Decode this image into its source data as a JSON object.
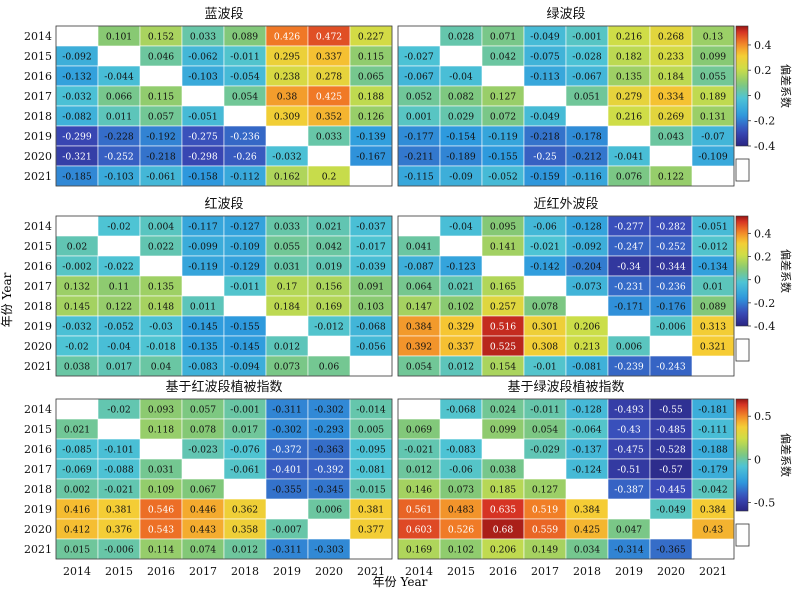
{
  "years": [
    "2014",
    "2015",
    "2016",
    "2017",
    "2018",
    "2019",
    "2020",
    "2021"
  ],
  "axis_label": "年份 Year",
  "colorbar_label": "偏差系数",
  "chart_data": [
    {
      "type": "heatmap",
      "title": "蓝波段",
      "rows": [
        "2014",
        "2015",
        "2016",
        "2017",
        "2018",
        "2019",
        "2020",
        "2021"
      ],
      "cols": [
        "2014",
        "2015",
        "2016",
        "2017",
        "2018",
        "2019",
        "2020",
        "2021"
      ],
      "values": [
        [
          null,
          0.101,
          0.152,
          0.033,
          0.089,
          0.426,
          0.472,
          0.227
        ],
        [
          -0.092,
          null,
          0.046,
          -0.062,
          -0.011,
          0.295,
          0.337,
          0.115
        ],
        [
          -0.132,
          -0.044,
          null,
          -0.103,
          -0.054,
          0.238,
          0.278,
          0.065
        ],
        [
          -0.032,
          0.066,
          0.115,
          null,
          0.054,
          0.38,
          0.425,
          0.188
        ],
        [
          -0.082,
          0.011,
          0.057,
          -0.051,
          null,
          0.309,
          0.352,
          0.126
        ],
        [
          -0.299,
          -0.228,
          -0.192,
          -0.275,
          -0.236,
          null,
          0.033,
          -0.139
        ],
        [
          -0.321,
          -0.252,
          -0.218,
          -0.298,
          -0.26,
          -0.032,
          null,
          -0.167
        ],
        [
          -0.185,
          -0.103,
          -0.061,
          -0.158,
          -0.112,
          0.162,
          0.2,
          null
        ]
      ]
    },
    {
      "type": "heatmap",
      "title": "绿波段",
      "rows": [
        "2014",
        "2015",
        "2016",
        "2017",
        "2018",
        "2019",
        "2020",
        "2021"
      ],
      "cols": [
        "2014",
        "2015",
        "2016",
        "2017",
        "2018",
        "2019",
        "2020",
        "2021"
      ],
      "values": [
        [
          null,
          0.028,
          0.071,
          -0.049,
          -0.001,
          0.216,
          0.268,
          0.13
        ],
        [
          -0.027,
          null,
          0.042,
          -0.075,
          -0.028,
          0.182,
          0.233,
          0.099
        ],
        [
          -0.067,
          -0.04,
          null,
          -0.113,
          -0.067,
          0.135,
          0.184,
          0.055
        ],
        [
          0.052,
          0.082,
          0.127,
          null,
          0.051,
          0.279,
          0.334,
          0.189
        ],
        [
          0.001,
          0.029,
          0.072,
          -0.049,
          null,
          0.216,
          0.269,
          0.131
        ],
        [
          -0.177,
          -0.154,
          -0.119,
          -0.218,
          -0.178,
          null,
          0.043,
          -0.07
        ],
        [
          -0.211,
          -0.189,
          -0.155,
          -0.25,
          -0.212,
          -0.041,
          null,
          -0.109
        ],
        [
          -0.115,
          -0.09,
          -0.052,
          -0.159,
          -0.116,
          0.076,
          0.122,
          null
        ]
      ],
      "colorbar": {
        "ticks": [
          0.4,
          0.2,
          0,
          -0.2,
          -0.4
        ],
        "range": [
          -0.4,
          0.55
        ]
      }
    },
    {
      "type": "heatmap",
      "title": "红波段",
      "rows": [
        "2014",
        "2015",
        "2016",
        "2017",
        "2018",
        "2019",
        "2020",
        "2021"
      ],
      "cols": [
        "2014",
        "2015",
        "2016",
        "2017",
        "2018",
        "2019",
        "2020",
        "2021"
      ],
      "values": [
        [
          null,
          -0.02,
          0.004,
          -0.117,
          -0.127,
          0.033,
          0.021,
          -0.037
        ],
        [
          0.02,
          null,
          0.022,
          -0.099,
          -0.109,
          0.055,
          0.042,
          -0.017
        ],
        [
          -0.002,
          -0.022,
          null,
          -0.119,
          -0.129,
          0.031,
          0.019,
          -0.039
        ],
        [
          0.132,
          0.11,
          0.135,
          null,
          -0.011,
          0.17,
          0.156,
          0.091
        ],
        [
          0.145,
          0.122,
          0.148,
          0.011,
          null,
          0.184,
          0.169,
          0.103
        ],
        [
          -0.032,
          -0.052,
          -0.03,
          -0.145,
          -0.155,
          null,
          -0.012,
          -0.068
        ],
        [
          -0.02,
          -0.04,
          -0.018,
          -0.135,
          -0.145,
          0.012,
          null,
          -0.056
        ],
        [
          0.038,
          0.017,
          0.04,
          -0.083,
          -0.094,
          0.073,
          0.06,
          null
        ]
      ]
    },
    {
      "type": "heatmap",
      "title": "近红外波段",
      "rows": [
        "2014",
        "2015",
        "2016",
        "2017",
        "2018",
        "2019",
        "2020",
        "2021"
      ],
      "cols": [
        "2014",
        "2015",
        "2016",
        "2017",
        "2018",
        "2019",
        "2020",
        "2021"
      ],
      "values": [
        [
          null,
          -0.04,
          0.095,
          -0.06,
          -0.128,
          -0.277,
          -0.282,
          -0.051
        ],
        [
          0.041,
          null,
          0.141,
          -0.021,
          -0.092,
          -0.247,
          -0.252,
          -0.012
        ],
        [
          -0.087,
          -0.123,
          null,
          -0.142,
          -0.204,
          -0.34,
          -0.344,
          -0.134
        ],
        [
          0.064,
          0.021,
          0.165,
          null,
          -0.073,
          -0.231,
          -0.236,
          0.01
        ],
        [
          0.147,
          0.102,
          0.257,
          0.078,
          null,
          -0.171,
          -0.176,
          0.089
        ],
        [
          0.384,
          0.329,
          0.516,
          0.301,
          0.206,
          null,
          -0.006,
          0.313
        ],
        [
          0.392,
          0.337,
          0.525,
          0.308,
          0.213,
          0.006,
          null,
          0.321
        ],
        [
          0.054,
          0.012,
          0.154,
          -0.01,
          -0.081,
          -0.239,
          -0.243,
          null
        ]
      ],
      "colorbar": {
        "ticks": [
          0.4,
          0.2,
          0,
          -0.2,
          -0.4
        ],
        "range": [
          -0.4,
          0.55
        ]
      }
    },
    {
      "type": "heatmap",
      "title": "基于红波段植被指数",
      "rows": [
        "2014",
        "2015",
        "2016",
        "2017",
        "2018",
        "2019",
        "2020",
        "2021"
      ],
      "cols": [
        "2014",
        "2015",
        "2016",
        "2017",
        "2018",
        "2019",
        "2020",
        "2021"
      ],
      "values": [
        [
          null,
          -0.02,
          0.093,
          0.057,
          -0.001,
          -0.311,
          -0.302,
          -0.014
        ],
        [
          0.021,
          null,
          0.118,
          0.078,
          0.017,
          -0.302,
          -0.293,
          0.005
        ],
        [
          -0.085,
          -0.101,
          null,
          -0.023,
          -0.076,
          -0.372,
          -0.363,
          -0.095
        ],
        [
          -0.069,
          -0.088,
          0.031,
          null,
          -0.061,
          -0.401,
          -0.392,
          -0.081
        ],
        [
          0.002,
          -0.021,
          0.109,
          0.067,
          null,
          -0.355,
          -0.345,
          -0.015
        ],
        [
          0.416,
          0.381,
          0.546,
          0.446,
          0.362,
          null,
          0.006,
          0.381
        ],
        [
          0.412,
          0.376,
          0.543,
          0.443,
          0.358,
          -0.007,
          null,
          0.377
        ],
        [
          0.015,
          -0.006,
          0.114,
          0.074,
          0.012,
          -0.311,
          -0.303,
          null
        ]
      ]
    },
    {
      "type": "heatmap",
      "title": "基于绿波段植被指数",
      "rows": [
        "2014",
        "2015",
        "2016",
        "2017",
        "2018",
        "2019",
        "2020",
        "2021"
      ],
      "cols": [
        "2014",
        "2015",
        "2016",
        "2017",
        "2018",
        "2019",
        "2020",
        "2021"
      ],
      "values": [
        [
          null,
          -0.068,
          0.024,
          -0.011,
          -0.128,
          -0.493,
          -0.55,
          -0.181
        ],
        [
          0.069,
          null,
          0.099,
          0.054,
          -0.064,
          -0.43,
          -0.485,
          -0.111
        ],
        [
          -0.021,
          -0.083,
          null,
          -0.029,
          -0.137,
          -0.475,
          -0.528,
          -0.188
        ],
        [
          0.012,
          -0.06,
          0.038,
          null,
          -0.124,
          -0.51,
          -0.57,
          -0.179
        ],
        [
          0.146,
          0.073,
          0.185,
          0.127,
          null,
          -0.387,
          -0.445,
          -0.042
        ],
        [
          0.561,
          0.483,
          0.635,
          0.519,
          0.384,
          null,
          -0.049,
          0.384
        ],
        [
          0.603,
          0.526,
          0.68,
          0.559,
          0.425,
          0.047,
          null,
          0.43
        ],
        [
          0.169,
          0.102,
          0.206,
          0.149,
          0.034,
          -0.314,
          -0.365,
          null
        ]
      ],
      "colorbar": {
        "ticks": [
          0.5,
          0,
          -0.5
        ],
        "range": [
          -0.6,
          0.7
        ]
      }
    }
  ]
}
